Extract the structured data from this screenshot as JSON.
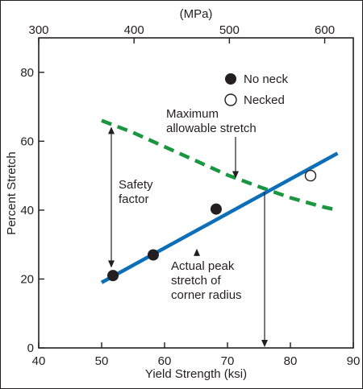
{
  "chart_data": {
    "type": "scatter",
    "xlabel": "Yield Strength (ksi)",
    "ylabel": "Percent Stretch",
    "x2label": "(MPa)",
    "xlim": [
      40,
      90
    ],
    "ylim": [
      0,
      90
    ],
    "x2lim": [
      300,
      630
    ],
    "xticks": [
      "40",
      "50",
      "60",
      "70",
      "80",
      "90"
    ],
    "yticks": [
      "0",
      "20",
      "40",
      "60",
      "80"
    ],
    "x2ticks": [
      "300",
      "400",
      "500",
      "600"
    ],
    "legend": {
      "placement": "top-right",
      "entries": [
        "No neck",
        "Necked"
      ]
    },
    "series": [
      {
        "name": "No neck",
        "marker": "filled-circle",
        "x": [
          51.8,
          58.2,
          68.2
        ],
        "y": [
          21,
          27,
          40.3
        ]
      },
      {
        "name": "Necked",
        "marker": "open-circle",
        "x": [
          83.2
        ],
        "y": [
          50
        ]
      },
      {
        "name": "Actual peak stretch of corner radius",
        "style": "solid",
        "x": [
          50,
          87.5
        ],
        "y": [
          19,
          56.5
        ]
      },
      {
        "name": "Maximum allowable stretch",
        "style": "dashed",
        "x": [
          50,
          55,
          60,
          65,
          70,
          75,
          80,
          85,
          87.5
        ],
        "y": [
          66,
          62.5,
          58.4,
          54.3,
          50.2,
          46.8,
          43.6,
          41,
          40
        ]
      }
    ],
    "annotations": {
      "max_stretch": [
        "Maximum",
        "allowable stretch"
      ],
      "safety": [
        "Safety",
        "factor"
      ],
      "actual": [
        "Actual peak",
        "stretch of",
        "corner radius"
      ]
    },
    "colors": {
      "actual_line": "#0d6fb8",
      "max_line": "#1a9641",
      "ink": "#231f20"
    }
  }
}
